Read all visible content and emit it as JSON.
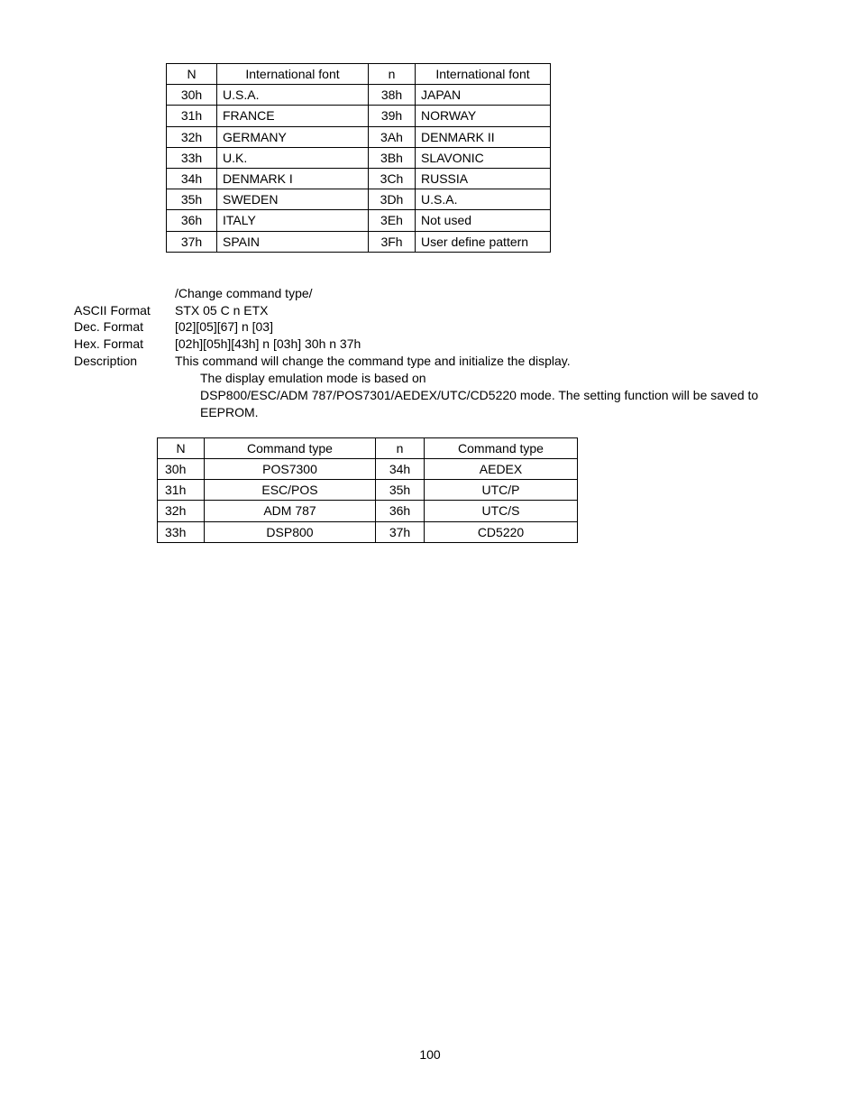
{
  "font_table": {
    "headers": {
      "n_upper": "N",
      "font_left": "International font",
      "n_lower": "n",
      "font_right": "International font"
    },
    "rows": [
      {
        "a": "30h",
        "b": "U.S.A.",
        "c": "38h",
        "d": "JAPAN"
      },
      {
        "a": "31h",
        "b": "FRANCE",
        "c": "39h",
        "d": "NORWAY"
      },
      {
        "a": "32h",
        "b": "GERMANY",
        "c": "3Ah",
        "d": "DENMARK II"
      },
      {
        "a": "33h",
        "b": "U.K.",
        "c": "3Bh",
        "d": "SLAVONIC"
      },
      {
        "a": "34h",
        "b": "DENMARK I",
        "c": "3Ch",
        "d": "RUSSIA"
      },
      {
        "a": "35h",
        "b": "SWEDEN",
        "c": "3Dh",
        "d": "U.S.A."
      },
      {
        "a": "36h",
        "b": "ITALY",
        "c": "3Eh",
        "d": "Not used"
      },
      {
        "a": "37h",
        "b": "SPAIN",
        "c": "3Fh",
        "d": "User define pattern"
      }
    ]
  },
  "command_block": {
    "title": "/Change command type/",
    "ascii_label": "ASCII Format",
    "ascii_value": "STX 05 C n ETX",
    "dec_label": "Dec.   Format",
    "dec_value": "[02][05][67] n [03]",
    "hex_label": "Hex.   Format",
    "hex_value": "[02h][05h][43h] n [03h]      30h   n   37h",
    "desc_label": "Description",
    "desc_line1": "This command will change the command type and initialize the display.",
    "desc_line2": "The display emulation mode is based on",
    "desc_line3": "DSP800/ESC/ADM 787/POS7301/AEDEX/UTC/CD5220 mode. The setting function will be saved to EEPROM."
  },
  "cmd_table": {
    "headers": {
      "n_upper": "N",
      "ct_left": "Command type",
      "n_lower": "n",
      "ct_right": "Command type"
    },
    "rows": [
      {
        "a": "30h",
        "b": "POS7300",
        "c": "34h",
        "d": "AEDEX"
      },
      {
        "a": "31h",
        "b": "ESC/POS",
        "c": "35h",
        "d": "UTC/P"
      },
      {
        "a": "32h",
        "b": "ADM 787",
        "c": "36h",
        "d": "UTC/S"
      },
      {
        "a": "33h",
        "b": "DSP800",
        "c": "37h",
        "d": "CD5220"
      }
    ]
  },
  "page_number": "100"
}
